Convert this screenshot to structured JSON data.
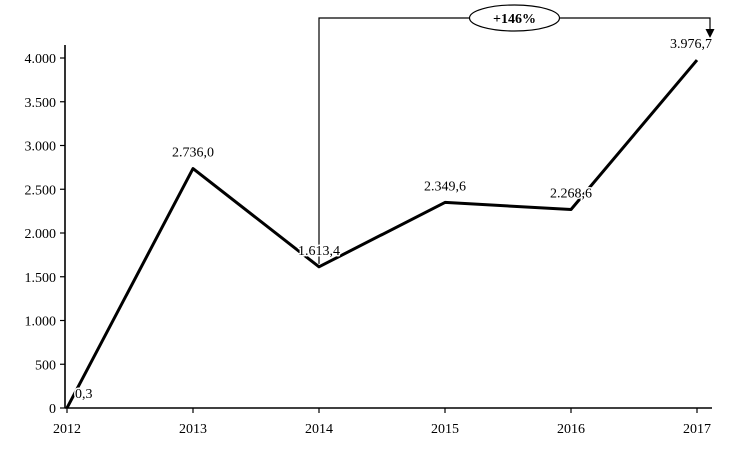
{
  "chart_data": {
    "type": "line",
    "title": "",
    "xlabel": "",
    "ylabel": "",
    "grid": false,
    "legend": false,
    "line_color": "#000000",
    "background_color": "#ffffff",
    "x": [
      2012,
      2013,
      2014,
      2015,
      2016,
      2017
    ],
    "x_tick_labels": [
      "2012",
      "2013",
      "2014",
      "2015",
      "2016",
      "2017"
    ],
    "values": [
      0.3,
      2736.0,
      1613.4,
      2349.6,
      2268.6,
      3976.7
    ],
    "point_labels": [
      "0,3",
      "2.736,0",
      "1.613,4",
      "2.349,6",
      "2.268,6",
      "3.976,7"
    ],
    "ylim": [
      0,
      4000
    ],
    "y_ticks": [
      0,
      500,
      1000,
      1500,
      2000,
      2500,
      3000,
      3500,
      4000
    ],
    "y_tick_labels": [
      "0",
      "500",
      "1.000",
      "1.500",
      "2.000",
      "2.500",
      "3.000",
      "3.500",
      "4.000"
    ],
    "annotation": {
      "label": "+146%",
      "from_x": 2014,
      "to_x": 2017,
      "shape": "ellipse",
      "arrow": "down"
    }
  }
}
